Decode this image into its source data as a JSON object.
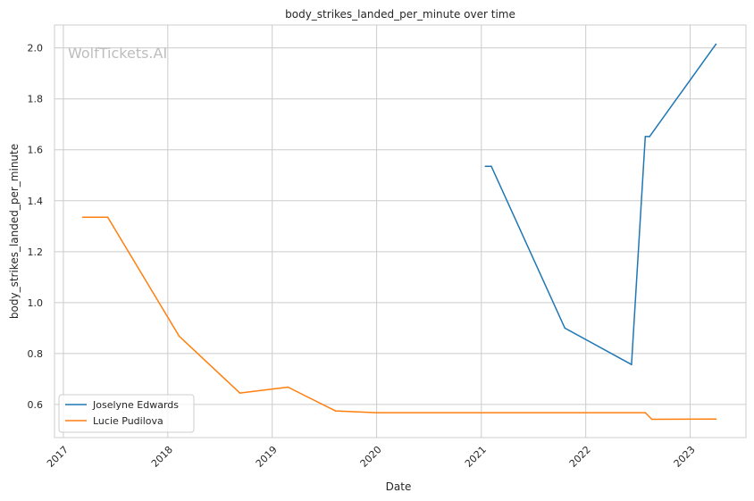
{
  "chart_data": {
    "type": "line",
    "title": "body_strikes_landed_per_minute over time",
    "xlabel": "Date",
    "ylabel": "body_strikes_landed_per_minute",
    "watermark": "WolfTickets.AI",
    "xlim": [
      "2016-12-01",
      "2023-07-15"
    ],
    "ylim": [
      0.47,
      2.09
    ],
    "x_ticks": [
      "2017-01-01",
      "2018-01-01",
      "2019-01-01",
      "2020-01-01",
      "2021-01-01",
      "2022-01-01",
      "2023-01-01"
    ],
    "x_tick_labels": [
      "2017",
      "2018",
      "2019",
      "2020",
      "2021",
      "2022",
      "2023"
    ],
    "y_ticks": [
      0.6,
      0.8,
      1.0,
      1.2,
      1.4,
      1.6,
      1.8,
      2.0
    ],
    "y_tick_labels": [
      "0.6",
      "0.8",
      "1.0",
      "1.2",
      "1.4",
      "1.6",
      "1.8",
      "2.0"
    ],
    "grid": true,
    "legend_position": "lower-left",
    "series": [
      {
        "name": "Joselyne Edwards",
        "color": "#1f77b4",
        "x": [
          "2021-01-15",
          "2021-02-05",
          "2021-10-20",
          "2022-06-10",
          "2022-07-28",
          "2022-08-12",
          "2023-04-01"
        ],
        "y": [
          1.535,
          1.535,
          0.9,
          0.757,
          1.652,
          1.652,
          2.015
        ]
      },
      {
        "name": "Lucie Pudilova",
        "color": "#ff7f0e",
        "x": [
          "2017-03-10",
          "2017-06-05",
          "2018-02-10",
          "2018-09-10",
          "2019-02-25",
          "2019-08-10",
          "2020-01-01",
          "2022-07-28",
          "2022-08-20",
          "2023-04-01"
        ],
        "y": [
          1.335,
          1.335,
          0.868,
          0.645,
          0.668,
          0.575,
          0.568,
          0.568,
          0.542,
          0.543
        ]
      }
    ]
  }
}
